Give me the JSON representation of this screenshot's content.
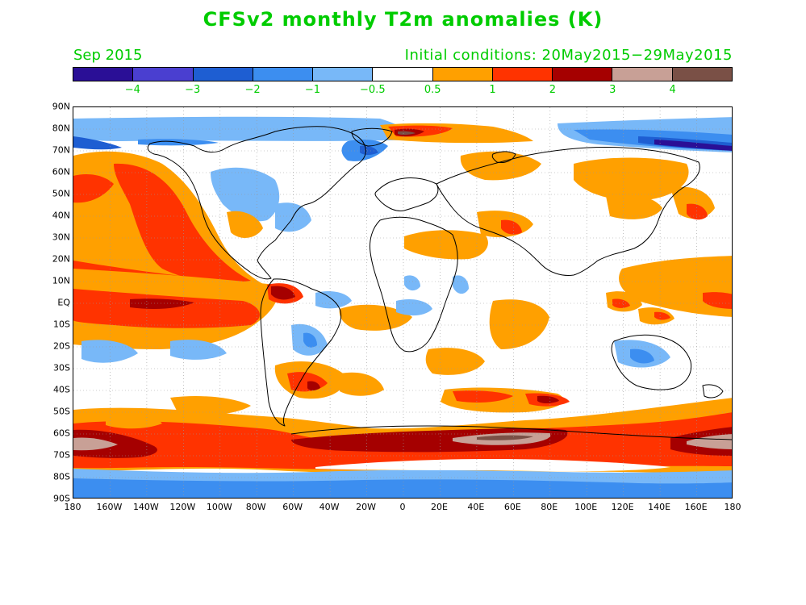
{
  "title": "CFSv2 monthly T2m anomalies (K)",
  "subtitle_left": "Sep 2015",
  "subtitle_right": "Initial conditions: 20May2015−29May2015",
  "colorbar": {
    "colors": [
      "#2a0f96",
      "#4a3fd0",
      "#1e5ed2",
      "#3c8ef0",
      "#78b8f8",
      "#ffffff",
      "#ffa000",
      "#ff3300",
      "#a50000",
      "#c8a096",
      "#7a5046"
    ],
    "labels": [
      "−4",
      "−3",
      "−2",
      "−1",
      "−0.5",
      "0.5",
      "1",
      "2",
      "3",
      "4"
    ]
  },
  "map": {
    "lat_labels": [
      "90N",
      "80N",
      "70N",
      "60N",
      "50N",
      "40N",
      "30N",
      "20N",
      "10N",
      "EQ",
      "10S",
      "20S",
      "30S",
      "40S",
      "50S",
      "60S",
      "70S",
      "80S",
      "90S"
    ],
    "lon_labels": [
      "180",
      "160W",
      "140W",
      "120W",
      "100W",
      "80W",
      "60W",
      "40W",
      "20W",
      "0",
      "20E",
      "40E",
      "60E",
      "80E",
      "100E",
      "120E",
      "140E",
      "160E",
      "180"
    ]
  }
}
